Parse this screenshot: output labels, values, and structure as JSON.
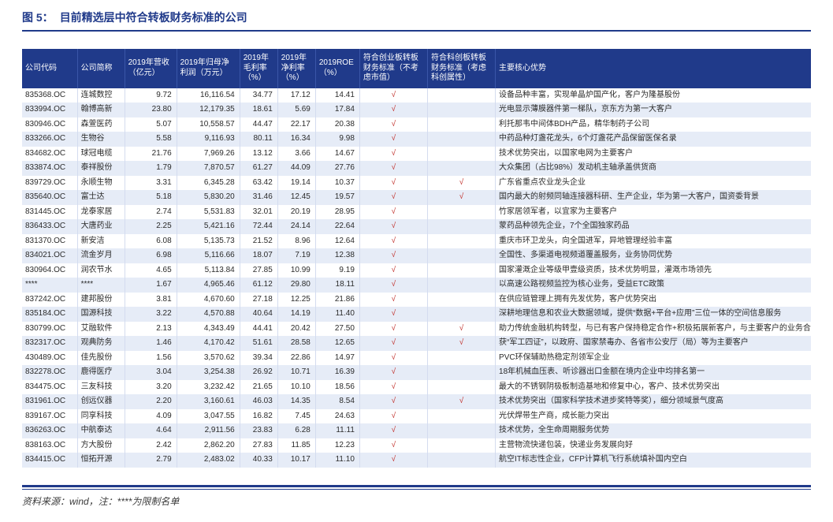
{
  "figure": {
    "number": "图 5：",
    "title": "目前精选层中符合转板财务标准的公司"
  },
  "columns": {
    "c0": "公司代码",
    "c1": "公司简称",
    "c2": "2019年营收（亿元）",
    "c3": "2019年归母净利润（万元）",
    "c4": "2019年毛利率（%）",
    "c5": "2019年净利率（%）",
    "c6": "2019ROE（%）",
    "c7": "符合创业板转板财务标准（不考虑市值）",
    "c8": "符合科创板转板财务标准（考虑科创属性）",
    "c9": "主要核心优势"
  },
  "col_widths": [
    "70",
    "60",
    "66",
    "80",
    "48",
    "48",
    "56",
    "86",
    "86",
    "400"
  ],
  "col_align": [
    "left",
    "left",
    "num",
    "num",
    "num",
    "num",
    "tick",
    "mark",
    "mark",
    "desc"
  ],
  "rows": [
    [
      "835368.OC",
      "连城数控",
      "9.72",
      "16,116.54",
      "34.77",
      "17.12",
      "14.41",
      "√",
      "",
      "设备品种丰富，实现单晶炉国产化，客户为隆基股份"
    ],
    [
      "833994.OC",
      "翰博高新",
      "23.80",
      "12,179.35",
      "18.61",
      "5.69",
      "17.84",
      "√",
      "",
      "光电显示薄膜器件第一梯队，京东方为第一大客户"
    ],
    [
      "830946.OC",
      "森萱医药",
      "5.07",
      "10,558.57",
      "44.47",
      "22.17",
      "20.38",
      "√",
      "",
      "利托那韦中间体BDH产品，精华制药子公司"
    ],
    [
      "833266.OC",
      "生物谷",
      "5.58",
      "9,116.93",
      "80.11",
      "16.34",
      "9.98",
      "√",
      "",
      "中药品种灯盏花龙头，6个灯盏花产品保留医保名录"
    ],
    [
      "834682.OC",
      "球冠电缆",
      "21.76",
      "7,969.26",
      "13.12",
      "3.66",
      "14.67",
      "√",
      "",
      "技术优势突出，以国家电网为主要客户"
    ],
    [
      "833874.OC",
      "泰祥股份",
      "1.79",
      "7,870.57",
      "61.27",
      "44.09",
      "27.76",
      "√",
      "",
      "大众集团（占比98%）发动机主轴承盖供货商"
    ],
    [
      "839729.OC",
      "永顺生物",
      "3.31",
      "6,345.28",
      "63.42",
      "19.14",
      "10.37",
      "√",
      "√",
      "广东省重点农业龙头企业"
    ],
    [
      "835640.OC",
      "富士达",
      "5.18",
      "5,830.20",
      "31.46",
      "12.45",
      "19.57",
      "√",
      "√",
      "国内最大的射频同轴连接器科研、生产企业，华为第一大客户，国资委背景"
    ],
    [
      "831445.OC",
      "龙泰家居",
      "2.74",
      "5,531.83",
      "32.01",
      "20.19",
      "28.95",
      "√",
      "",
      "竹家居领军者，以宜家为主要客户"
    ],
    [
      "836433.OC",
      "大唐药业",
      "2.25",
      "5,421.16",
      "72.44",
      "24.14",
      "22.64",
      "√",
      "",
      "蒙药品种领先企业，7个全国独家药品"
    ],
    [
      "831370.OC",
      "新安洁",
      "6.08",
      "5,135.73",
      "21.52",
      "8.96",
      "12.64",
      "√",
      "",
      "重庆市环卫龙头，向全国进军，异地管理经验丰富"
    ],
    [
      "834021.OC",
      "流金岁月",
      "6.98",
      "5,116.66",
      "18.07",
      "7.19",
      "12.38",
      "√",
      "",
      "全国性、多渠道电视频道覆盖服务，业务协同优势"
    ],
    [
      "830964.OC",
      "润农节水",
      "4.65",
      "5,113.84",
      "27.85",
      "10.99",
      "9.19",
      "√",
      "",
      "国家灌溉企业等级甲壹级资质，技术优势明显，灌溉市场领先"
    ],
    [
      "****",
      "****",
      "1.67",
      "4,965.46",
      "61.12",
      "29.80",
      "18.11",
      "√",
      "",
      "以高速公路视频监控为核心业务，受益ETC政策"
    ],
    [
      "837242.OC",
      "建邦股份",
      "3.81",
      "4,670.60",
      "27.18",
      "12.25",
      "21.86",
      "√",
      "",
      "在供应链管理上拥有先发优势，客户优势突出"
    ],
    [
      "835184.OC",
      "国源科技",
      "3.22",
      "4,570.88",
      "40.64",
      "14.19",
      "11.40",
      "√",
      "",
      "深耕地理信息和农业大数据领域，提供“数据+平台+应用”三位一体的空间信息服务"
    ],
    [
      "830799.OC",
      "艾融软件",
      "2.13",
      "4,343.49",
      "44.41",
      "20.42",
      "27.50",
      "√",
      "√",
      "助力传统金融机构转型，与已有客户保持稳定合作+积极拓展新客户，与主要客户的业务合作期限均已连续超过5…"
    ],
    [
      "832317.OC",
      "观典防务",
      "1.46",
      "4,170.42",
      "51.61",
      "28.58",
      "12.65",
      "√",
      "√",
      "获“军工四证”，以政府、国家禁毒办、各省市公安厅（局）等为主要客户"
    ],
    [
      "430489.OC",
      "佳先股份",
      "1.56",
      "3,570.62",
      "39.34",
      "22.86",
      "14.97",
      "√",
      "",
      "PVC环保辅助热稳定剂领军企业"
    ],
    [
      "832278.OC",
      "鹿得医疗",
      "3.04",
      "3,254.38",
      "26.92",
      "10.71",
      "16.39",
      "√",
      "",
      "18年机械血压表、听诊器出口金额在境内企业中均排名第一"
    ],
    [
      "834475.OC",
      "三友科技",
      "3.20",
      "3,232.42",
      "21.65",
      "10.10",
      "18.56",
      "√",
      "",
      "最大的不锈钢阴极板制造基地和修复中心，客户、技术优势突出"
    ],
    [
      "831961.OC",
      "创远仪器",
      "2.20",
      "3,160.61",
      "46.03",
      "14.35",
      "8.54",
      "√",
      "√",
      "技术优势突出（国家科学技术进步奖特等奖），细分领域景气度高"
    ],
    [
      "839167.OC",
      "同享科技",
      "4.09",
      "3,047.55",
      "16.82",
      "7.45",
      "24.63",
      "√",
      "",
      "光伏焊带生产商，成长能力突出"
    ],
    [
      "836263.OC",
      "中航泰达",
      "4.64",
      "2,911.56",
      "23.83",
      "6.28",
      "11.11",
      "√",
      "",
      "技术优势，全生命周期服务优势"
    ],
    [
      "838163.OC",
      "方大股份",
      "2.42",
      "2,862.20",
      "27.83",
      "11.85",
      "12.23",
      "√",
      "",
      "主营物流快递包装，快递业务发展向好"
    ],
    [
      "834415.OC",
      "恒拓开源",
      "2.79",
      "2,483.02",
      "40.33",
      "10.17",
      "11.10",
      "√",
      "",
      "航空IT标志性企业，CFP计算机飞行系统填补国内空白"
    ]
  ],
  "source": "资料来源：wind，注：****为限制名单"
}
